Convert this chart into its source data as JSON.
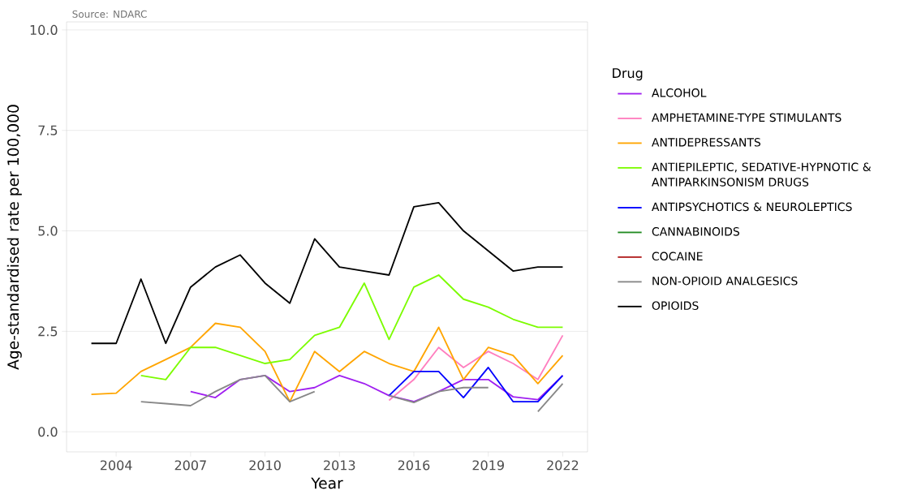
{
  "chart_data": {
    "type": "line",
    "xlabel": "Year",
    "ylabel": "Age-standardised rate per 100,000",
    "legend_title": "Drug",
    "annotations": [
      "Source: NDARC"
    ],
    "x": [
      2003,
      2004,
      2005,
      2006,
      2007,
      2008,
      2009,
      2010,
      2011,
      2012,
      2013,
      2014,
      2015,
      2016,
      2017,
      2018,
      2019,
      2020,
      2021,
      2022
    ],
    "series": [
      {
        "name": "ALCOHOL",
        "color": "#a020f0",
        "values": [
          null,
          null,
          null,
          null,
          1.0,
          0.85,
          1.3,
          1.4,
          1.0,
          1.1,
          1.4,
          1.2,
          0.9,
          0.75,
          1.0,
          1.3,
          1.3,
          0.87,
          0.8,
          1.4
        ]
      },
      {
        "name": "AMPHETAMINE-TYPE STIMULANTS",
        "color": "#ff7fbf",
        "values": [
          null,
          null,
          null,
          null,
          null,
          null,
          null,
          null,
          null,
          null,
          null,
          null,
          0.78,
          1.3,
          2.1,
          1.6,
          2.0,
          1.7,
          1.3,
          2.4
        ]
      },
      {
        "name": "ANTIDEPRESSANTS",
        "color": "#ffa500",
        "values": [
          0.93,
          0.96,
          1.5,
          1.8,
          2.1,
          2.7,
          2.6,
          2.0,
          0.75,
          2.0,
          1.5,
          2.0,
          1.7,
          1.5,
          2.6,
          1.3,
          2.1,
          1.9,
          1.2,
          1.9
        ]
      },
      {
        "name": "ANTIEPILEPTIC, SEDATIVE-HYPNOTIC & ANTIPARKINSONISM DRUGS",
        "color": "#7cfc00",
        "values": [
          null,
          null,
          1.4,
          1.3,
          2.1,
          2.1,
          1.9,
          1.7,
          1.8,
          2.4,
          2.6,
          3.7,
          2.3,
          3.6,
          3.9,
          3.3,
          3.1,
          2.8,
          2.6,
          2.6
        ]
      },
      {
        "name": "ANTIPSYCHOTICS & NEUROLEPTICS",
        "color": "#0000ff",
        "values": [
          null,
          null,
          null,
          null,
          null,
          null,
          null,
          null,
          null,
          null,
          null,
          null,
          0.9,
          1.5,
          1.5,
          0.85,
          1.6,
          0.75,
          0.75,
          1.4
        ]
      },
      {
        "name": "CANNABINOIDS",
        "color": "#228b22",
        "values": [
          null,
          null,
          null,
          null,
          null,
          null,
          null,
          null,
          null,
          null,
          null,
          null,
          null,
          null,
          null,
          null,
          null,
          null,
          null,
          null
        ]
      },
      {
        "name": "COCAINE",
        "color": "#b22222",
        "values": [
          null,
          null,
          null,
          null,
          null,
          null,
          null,
          null,
          null,
          null,
          null,
          null,
          null,
          null,
          null,
          null,
          null,
          null,
          null,
          null
        ]
      },
      {
        "name": "NON-OPIOID ANALGESICS",
        "color": "#888888",
        "values": [
          null,
          null,
          0.75,
          0.7,
          0.65,
          1.0,
          1.3,
          1.4,
          0.75,
          1.0,
          null,
          null,
          0.9,
          0.73,
          1.0,
          1.1,
          1.1,
          null,
          0.5,
          1.2
        ]
      },
      {
        "name": "OPIOIDS",
        "color": "#000000",
        "values": [
          2.2,
          2.2,
          3.8,
          2.2,
          3.6,
          4.1,
          4.4,
          3.7,
          3.2,
          4.8,
          4.1,
          4.0,
          3.9,
          5.6,
          5.7,
          5.0,
          4.5,
          4.0,
          4.1,
          4.1
        ]
      }
    ],
    "xlim": [
      2002,
      2023
    ],
    "ylim": [
      -0.5,
      10.2
    ],
    "xticks": [
      2004,
      2007,
      2010,
      2013,
      2016,
      2019,
      2022
    ],
    "yticks": [
      {
        "value": 0,
        "label": "0.0"
      },
      {
        "value": 2.5,
        "label": "2.5"
      },
      {
        "value": 5,
        "label": "5.0"
      },
      {
        "value": 7.5,
        "label": "7.5"
      },
      {
        "value": 10,
        "label": "10.0"
      }
    ],
    "grid": "y",
    "legend": "right",
    "line_style": "solid"
  }
}
